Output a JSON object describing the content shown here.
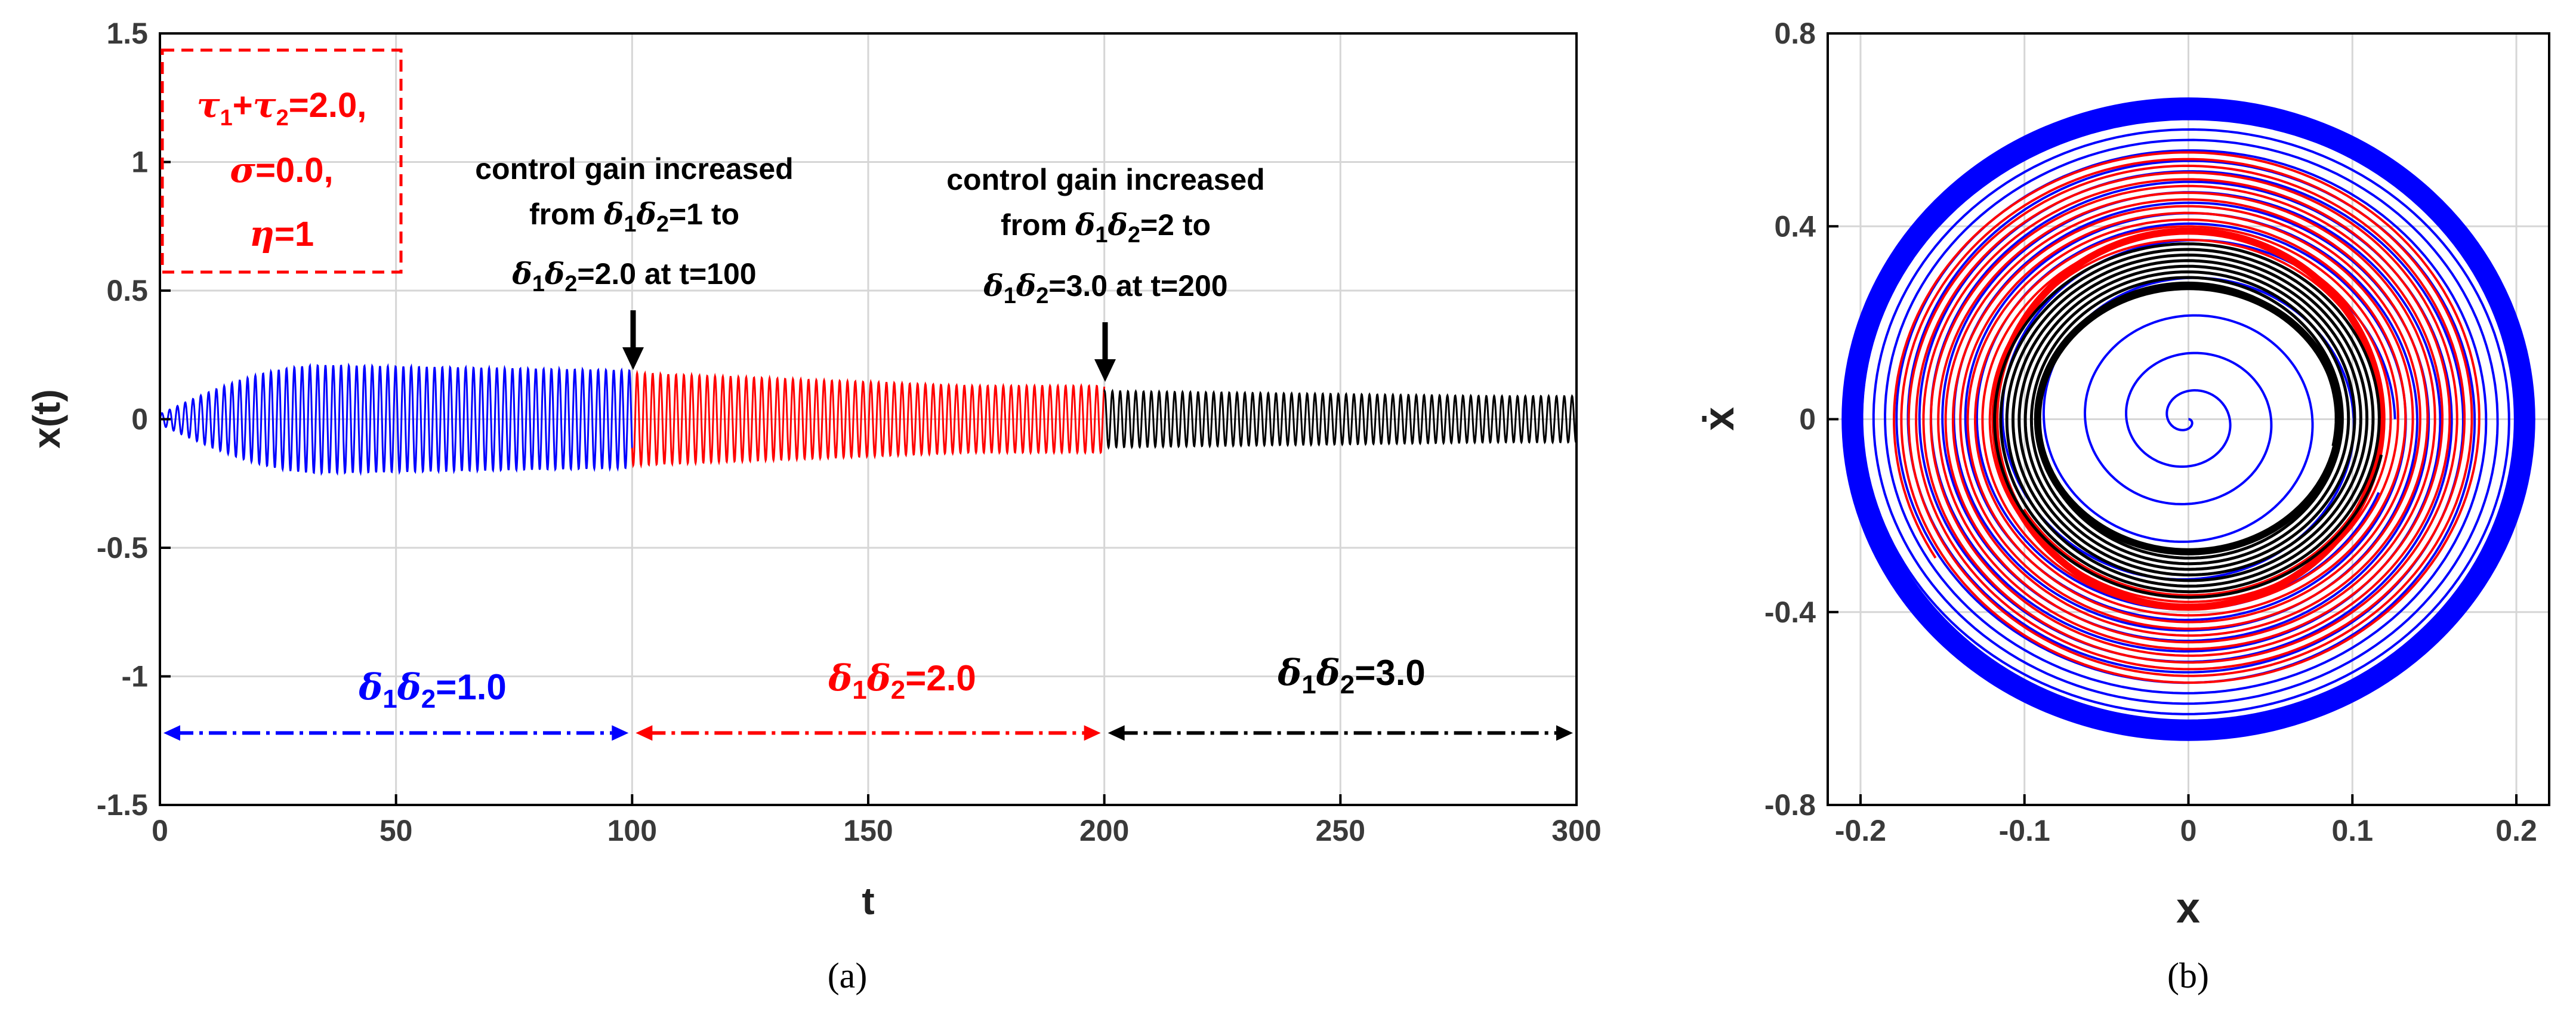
{
  "chart_data": [
    {
      "type": "line",
      "caption": "(a)",
      "xlabel": "t",
      "ylabel": "x(t)",
      "xlim": [
        0,
        300
      ],
      "ylim": [
        -1.5,
        1.5
      ],
      "xticks": [
        "0",
        "50",
        "100",
        "150",
        "200",
        "250",
        "300"
      ],
      "yticks": [
        "1.5",
        "1",
        "0.5",
        "0",
        "-0.5",
        "-1",
        "-1.5"
      ],
      "grid": true,
      "series": [
        {
          "name": "δ1δ2=1.0",
          "color": "#0000ff",
          "t_range": [
            0,
            100
          ],
          "amplitude_start": 0.02,
          "amplitude_peak": 0.21,
          "amplitude_end": 0.19
        },
        {
          "name": "δ1δ2=2.0",
          "color": "#ff0000",
          "t_range": [
            100,
            200
          ],
          "amplitude_start": 0.18,
          "amplitude_end": 0.13
        },
        {
          "name": "δ1δ2=3.0",
          "color": "#000000",
          "t_range": [
            200,
            300
          ],
          "amplitude_start": 0.11,
          "amplitude_end": 0.09
        }
      ],
      "params_box": {
        "line1": "+",
        "line1b": "=2.0,",
        "sigma": "=0.0,",
        "eta": "=1",
        "color": "#ff0000"
      },
      "annotations": [
        {
          "text_line1": "control gain increased",
          "text_line2a": "from ",
          "text_line2b": "=1 to",
          "text_line3b": "=2.0 at t=100",
          "arrow_t": 100
        },
        {
          "text_line1": "control gain increased",
          "text_line2a": "from ",
          "text_line2b": "=2 to",
          "text_line3b": "=3.0 at t=200",
          "arrow_t": 200
        }
      ],
      "regions": [
        {
          "label_value": "=1.0",
          "color": "#0000ff",
          "t_range": [
            0,
            100
          ],
          "y": -1.22
        },
        {
          "label_value": "=2.0",
          "color": "#ff0000",
          "t_range": [
            100,
            200
          ],
          "y": -1.22
        },
        {
          "label_value": "=3.0",
          "color": "#000000",
          "t_range": [
            200,
            300
          ],
          "y": -1.22
        }
      ]
    },
    {
      "type": "line",
      "caption": "(b)",
      "xlabel": "x",
      "ylabel": "ẋ",
      "xlim": [
        -0.22,
        0.22
      ],
      "ylim": [
        -0.8,
        0.8
      ],
      "xticks": [
        "-0.2",
        "-0.1",
        "0",
        "0.1",
        "0.2"
      ],
      "yticks": [
        "0.8",
        "0.4",
        "0",
        "-0.4",
        "-0.8"
      ],
      "grid": true,
      "series": [
        {
          "name": "blue spiral",
          "color": "#0000ff",
          "x_amplitude_outer": 0.21,
          "y_amplitude_outer": 0.66
        },
        {
          "name": "red spiral",
          "color": "#ff0000",
          "x_amplitude_outer": 0.18,
          "x_amplitude_inner": 0.13
        },
        {
          "name": "black spiral",
          "color": "#000000",
          "x_amplitude_outer": 0.12,
          "x_amplitude_inner": 0.09
        }
      ]
    }
  ]
}
